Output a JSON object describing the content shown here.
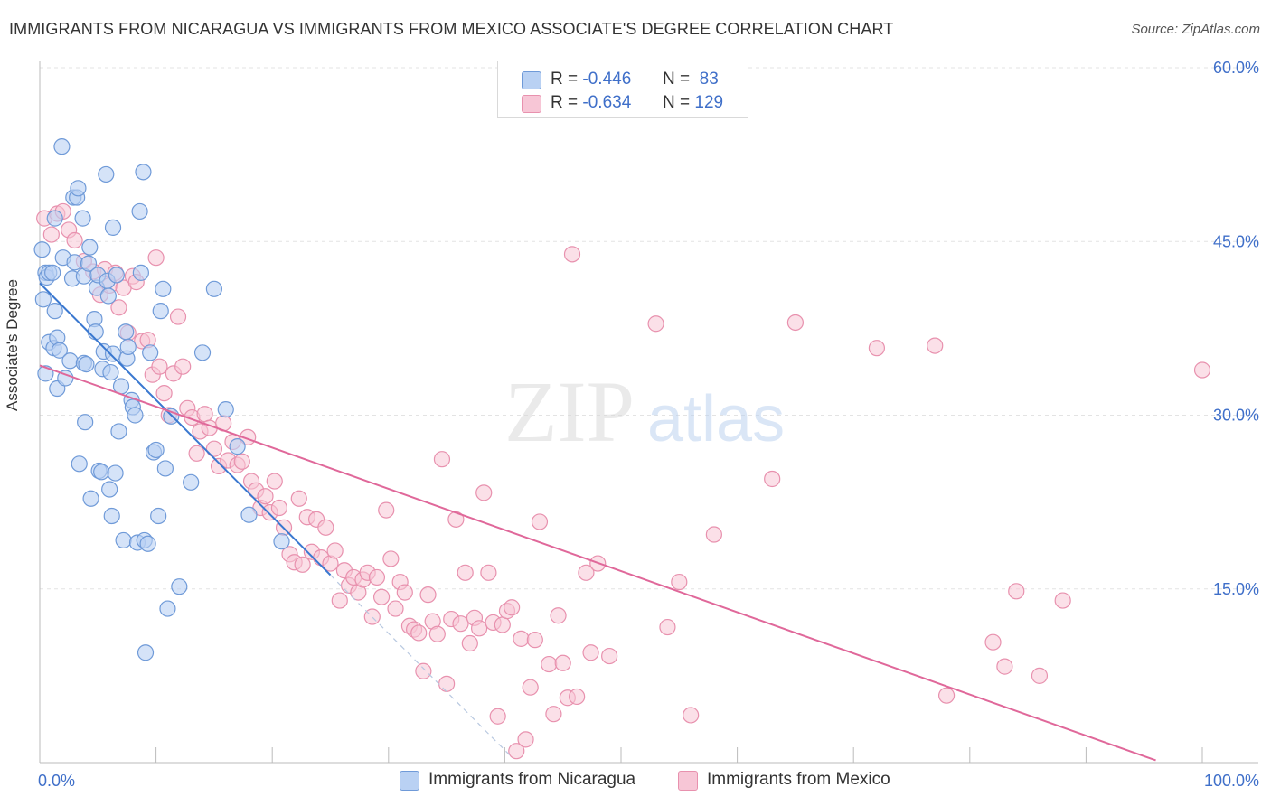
{
  "title": "IMMIGRANTS FROM NICARAGUA VS IMMIGRANTS FROM MEXICO ASSOCIATE'S DEGREE CORRELATION CHART",
  "source": "Source: ZipAtlas.com",
  "watermark": {
    "zip": "ZIP",
    "atlas": "atlas"
  },
  "legend_top": [
    {
      "r_label": "R =",
      "r_value": "-0.446",
      "n_label": "N =",
      "n_value": "83"
    },
    {
      "r_label": "R =",
      "r_value": "-0.634",
      "n_label": "N =",
      "n_value": "129"
    }
  ],
  "colors": {
    "nicaragua_fill": "#b9d1f3",
    "nicaragua_stroke": "#6f9ad8",
    "nicaragua_line": "#3a78d0",
    "mexico_fill": "#f7c6d6",
    "mexico_stroke": "#e891ae",
    "mexico_line": "#e0689a",
    "axis_label": "#3f6fc9"
  },
  "chart_data": {
    "type": "scatter",
    "title": "IMMIGRANTS FROM NICARAGUA VS IMMIGRANTS FROM MEXICO ASSOCIATE'S DEGREE CORRELATION CHART",
    "xlabel": "",
    "ylabel": "Associate's Degree",
    "xlim": [
      0,
      100
    ],
    "ylim": [
      0,
      60
    ],
    "x_tick_labels": [
      "0.0%",
      "100.0%"
    ],
    "y_ticks": [
      15,
      30,
      45,
      60
    ],
    "y_tick_labels": [
      "15.0%",
      "30.0%",
      "45.0%",
      "60.0%"
    ],
    "grid": true,
    "legend": [
      "Immigrants from Nicaragua",
      "Immigrants from Mexico"
    ],
    "series": [
      {
        "name": "Immigrants from Nicaragua",
        "R": -0.446,
        "N": 83,
        "trend": {
          "x0": 0,
          "y0": 41.4,
          "x1": 25,
          "y1": 16.2,
          "dashed_to_x": 40.5
        },
        "points": [
          [
            0.2,
            44.3
          ],
          [
            0.3,
            40.0
          ],
          [
            0.5,
            42.3
          ],
          [
            0.5,
            33.6
          ],
          [
            0.6,
            41.9
          ],
          [
            0.8,
            36.3
          ],
          [
            0.8,
            42.3
          ],
          [
            1.1,
            42.3
          ],
          [
            1.2,
            35.8
          ],
          [
            1.3,
            39.0
          ],
          [
            1.3,
            47.0
          ],
          [
            1.5,
            36.7
          ],
          [
            1.5,
            32.3
          ],
          [
            1.7,
            35.6
          ],
          [
            1.9,
            53.2
          ],
          [
            2.0,
            43.6
          ],
          [
            2.2,
            33.2
          ],
          [
            2.6,
            34.7
          ],
          [
            2.8,
            41.8
          ],
          [
            2.9,
            48.8
          ],
          [
            3.0,
            43.2
          ],
          [
            3.2,
            48.8
          ],
          [
            3.3,
            49.6
          ],
          [
            3.4,
            25.8
          ],
          [
            3.7,
            47.0
          ],
          [
            3.8,
            42.0
          ],
          [
            3.8,
            34.5
          ],
          [
            3.9,
            29.4
          ],
          [
            4.0,
            34.4
          ],
          [
            4.2,
            43.1
          ],
          [
            4.3,
            44.5
          ],
          [
            4.4,
            22.8
          ],
          [
            4.7,
            38.3
          ],
          [
            4.8,
            37.2
          ],
          [
            4.9,
            41.0
          ],
          [
            5.0,
            42.1
          ],
          [
            5.1,
            25.2
          ],
          [
            5.3,
            25.1
          ],
          [
            5.4,
            34.0
          ],
          [
            5.5,
            35.5
          ],
          [
            5.7,
            50.8
          ],
          [
            5.8,
            41.6
          ],
          [
            5.9,
            40.3
          ],
          [
            6.0,
            23.6
          ],
          [
            6.1,
            33.7
          ],
          [
            6.2,
            21.3
          ],
          [
            6.3,
            46.2
          ],
          [
            6.3,
            35.3
          ],
          [
            6.5,
            25.0
          ],
          [
            6.6,
            42.1
          ],
          [
            6.8,
            28.6
          ],
          [
            7.0,
            32.5
          ],
          [
            7.2,
            19.2
          ],
          [
            7.4,
            37.2
          ],
          [
            7.5,
            34.9
          ],
          [
            7.6,
            35.9
          ],
          [
            7.9,
            31.3
          ],
          [
            8.0,
            30.7
          ],
          [
            8.2,
            30.0
          ],
          [
            8.4,
            19.0
          ],
          [
            8.6,
            47.6
          ],
          [
            8.7,
            42.3
          ],
          [
            8.9,
            51.0
          ],
          [
            9.0,
            19.2
          ],
          [
            9.1,
            9.5
          ],
          [
            9.3,
            18.9
          ],
          [
            9.5,
            35.4
          ],
          [
            9.8,
            26.8
          ],
          [
            10.0,
            27.0
          ],
          [
            10.2,
            21.3
          ],
          [
            10.4,
            39.0
          ],
          [
            10.6,
            40.9
          ],
          [
            10.8,
            25.4
          ],
          [
            11.0,
            13.3
          ],
          [
            11.3,
            29.9
          ],
          [
            12.0,
            15.2
          ],
          [
            13.0,
            24.2
          ],
          [
            14.0,
            35.4
          ],
          [
            15.0,
            40.9
          ],
          [
            16.0,
            30.5
          ],
          [
            17.0,
            27.3
          ],
          [
            18.0,
            21.4
          ],
          [
            20.8,
            19.1
          ]
        ]
      },
      {
        "name": "Immigrants from Mexico",
        "R": -0.634,
        "N": 129,
        "trend": {
          "x0": 0,
          "y0": 34.3,
          "x1": 96,
          "y1": 0.2
        },
        "points": [
          [
            0.4,
            47.0
          ],
          [
            1.0,
            45.6
          ],
          [
            1.5,
            47.4
          ],
          [
            2.0,
            47.6
          ],
          [
            2.5,
            46.0
          ],
          [
            3.0,
            45.1
          ],
          [
            3.8,
            43.3
          ],
          [
            4.6,
            42.4
          ],
          [
            5.2,
            40.4
          ],
          [
            5.6,
            42.6
          ],
          [
            6.0,
            41.2
          ],
          [
            6.5,
            42.3
          ],
          [
            6.8,
            39.3
          ],
          [
            7.2,
            41.0
          ],
          [
            7.6,
            37.1
          ],
          [
            8.0,
            42.0
          ],
          [
            8.3,
            41.5
          ],
          [
            8.8,
            36.4
          ],
          [
            9.3,
            36.5
          ],
          [
            9.7,
            33.5
          ],
          [
            10.0,
            43.6
          ],
          [
            10.3,
            34.2
          ],
          [
            10.7,
            31.9
          ],
          [
            11.1,
            30.0
          ],
          [
            11.5,
            33.6
          ],
          [
            11.9,
            38.5
          ],
          [
            12.3,
            34.2
          ],
          [
            12.7,
            30.6
          ],
          [
            13.1,
            29.8
          ],
          [
            13.5,
            26.7
          ],
          [
            13.8,
            28.6
          ],
          [
            14.2,
            30.1
          ],
          [
            14.6,
            28.9
          ],
          [
            15.0,
            27.1
          ],
          [
            15.4,
            25.6
          ],
          [
            15.8,
            29.3
          ],
          [
            16.2,
            26.1
          ],
          [
            16.6,
            27.7
          ],
          [
            17.0,
            25.7
          ],
          [
            17.4,
            26.0
          ],
          [
            17.9,
            28.1
          ],
          [
            18.2,
            24.3
          ],
          [
            18.6,
            23.5
          ],
          [
            19.0,
            22.0
          ],
          [
            19.4,
            23.0
          ],
          [
            19.8,
            21.6
          ],
          [
            20.2,
            24.3
          ],
          [
            20.6,
            22.0
          ],
          [
            21.0,
            20.3
          ],
          [
            21.5,
            18.0
          ],
          [
            21.9,
            17.3
          ],
          [
            22.3,
            22.8
          ],
          [
            22.6,
            17.1
          ],
          [
            23.0,
            21.2
          ],
          [
            23.4,
            18.2
          ],
          [
            23.8,
            21.0
          ],
          [
            24.2,
            17.7
          ],
          [
            24.6,
            20.3
          ],
          [
            25.0,
            17.2
          ],
          [
            25.4,
            18.3
          ],
          [
            25.8,
            14.0
          ],
          [
            26.2,
            16.6
          ],
          [
            26.6,
            15.3
          ],
          [
            27.0,
            16.0
          ],
          [
            27.4,
            14.7
          ],
          [
            27.8,
            15.8
          ],
          [
            28.2,
            16.4
          ],
          [
            28.6,
            12.6
          ],
          [
            29.0,
            16.0
          ],
          [
            29.4,
            14.3
          ],
          [
            29.8,
            21.8
          ],
          [
            30.2,
            17.6
          ],
          [
            30.6,
            13.3
          ],
          [
            31.0,
            15.6
          ],
          [
            31.4,
            14.7
          ],
          [
            31.8,
            11.8
          ],
          [
            32.2,
            11.5
          ],
          [
            32.6,
            11.2
          ],
          [
            33.0,
            7.9
          ],
          [
            33.4,
            14.5
          ],
          [
            33.8,
            12.2
          ],
          [
            34.2,
            11.1
          ],
          [
            34.6,
            26.2
          ],
          [
            35.0,
            6.8
          ],
          [
            35.4,
            12.4
          ],
          [
            35.8,
            21.0
          ],
          [
            36.2,
            12.0
          ],
          [
            36.6,
            16.4
          ],
          [
            37.0,
            10.3
          ],
          [
            37.4,
            12.5
          ],
          [
            37.8,
            11.6
          ],
          [
            38.2,
            23.3
          ],
          [
            38.6,
            16.4
          ],
          [
            39.0,
            12.1
          ],
          [
            39.4,
            4.0
          ],
          [
            39.8,
            11.9
          ],
          [
            40.2,
            13.1
          ],
          [
            40.6,
            13.4
          ],
          [
            41.0,
            1.0
          ],
          [
            41.4,
            10.7
          ],
          [
            41.8,
            2.0
          ],
          [
            42.2,
            6.5
          ],
          [
            42.6,
            10.6
          ],
          [
            43.0,
            20.8
          ],
          [
            43.8,
            8.5
          ],
          [
            44.2,
            4.2
          ],
          [
            44.6,
            12.7
          ],
          [
            45.0,
            8.6
          ],
          [
            45.4,
            5.6
          ],
          [
            45.8,
            43.9
          ],
          [
            46.2,
            5.7
          ],
          [
            47.0,
            16.4
          ],
          [
            47.4,
            9.5
          ],
          [
            48.0,
            17.2
          ],
          [
            49.0,
            9.2
          ],
          [
            53.0,
            37.9
          ],
          [
            54.0,
            11.7
          ],
          [
            55.0,
            15.6
          ],
          [
            56.0,
            4.1
          ],
          [
            58.0,
            19.7
          ],
          [
            63.0,
            24.5
          ],
          [
            65.0,
            38.0
          ],
          [
            72.0,
            35.8
          ],
          [
            77.0,
            36.0
          ],
          [
            78.0,
            5.8
          ],
          [
            82.0,
            10.4
          ],
          [
            83.0,
            8.3
          ],
          [
            84.0,
            14.8
          ],
          [
            86.0,
            7.5
          ],
          [
            88.0,
            14.0
          ],
          [
            100.0,
            33.9
          ]
        ]
      }
    ]
  },
  "bottom_legend": [
    "Immigrants from Nicaragua",
    "Immigrants from Mexico"
  ]
}
